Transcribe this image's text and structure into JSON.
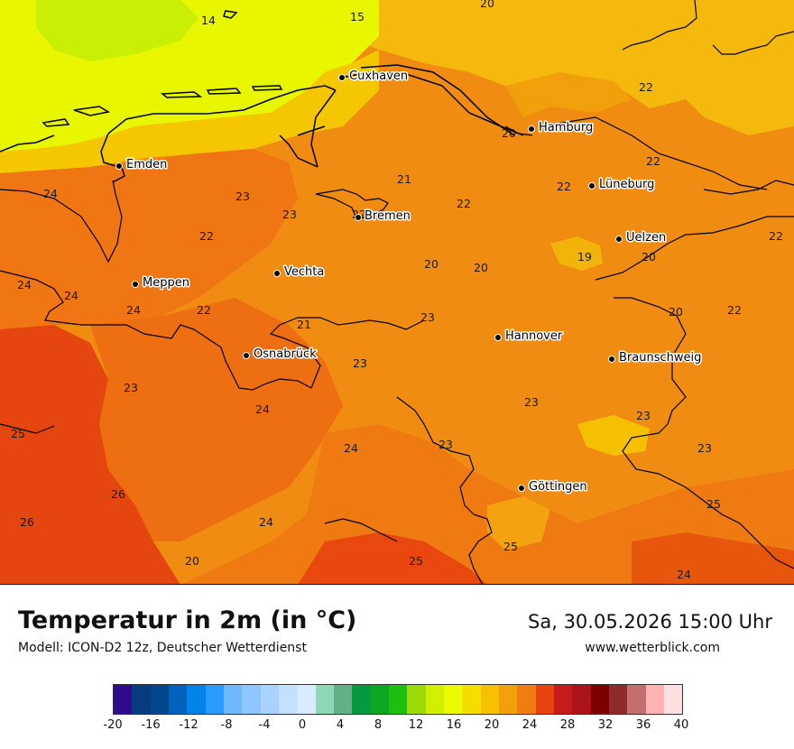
{
  "map": {
    "cities": [
      {
        "name": "Cuxhaven"
      },
      {
        "name": "Hamburg"
      },
      {
        "name": "Emden"
      },
      {
        "name": "Lüneburg"
      },
      {
        "name": "Bremen"
      },
      {
        "name": "Uelzen"
      },
      {
        "name": "Vechta"
      },
      {
        "name": "Meppen"
      },
      {
        "name": "Hannover"
      },
      {
        "name": "Osnabrück"
      },
      {
        "name": "Braunschweig"
      },
      {
        "name": "Göttingen"
      }
    ],
    "values": [
      "14",
      "15",
      "20",
      "22",
      "20",
      "22",
      "22",
      "21",
      "24",
      "23",
      "23",
      "22",
      "22",
      "22",
      "19",
      "20",
      "20",
      "22",
      "24",
      "24",
      "24",
      "22",
      "21",
      "23",
      "20",
      "22",
      "23",
      "23",
      "23",
      "23",
      "24",
      "25",
      "24",
      "23",
      "23",
      "26",
      "26",
      "24",
      "25",
      "20",
      "20",
      "25",
      "25",
      "24"
    ]
  },
  "title": "Temperatur in 2m (in °C)",
  "model": "Modell: ICON-D2 12z, Deutscher Wetterdienst",
  "datetime": "Sa, 30.05.2026 15:00 Uhr",
  "website": "www.wetterblick.com",
  "legend": {
    "colors": [
      "#2e0c8c",
      "#073d7e",
      "#00478c",
      "#0062ba",
      "#0083e8",
      "#2a9bff",
      "#6fb7ff",
      "#8dc5ff",
      "#a9d2ff",
      "#c4e0ff",
      "#d9ebff",
      "#8ed8b8",
      "#62b084",
      "#059a40",
      "#0fa624",
      "#1ec00f",
      "#9ed909",
      "#d1ef00",
      "#ecfa00",
      "#f5dd00",
      "#f5c100",
      "#f29f0c",
      "#ef7d12",
      "#e8420e",
      "#c41c1b",
      "#ad1417",
      "#7d0000",
      "#8e2c2c",
      "#c46f6f",
      "#ffb3b3",
      "#ffe0e0"
    ],
    "ticks": [
      "-20",
      "-16",
      "-12",
      "-8",
      "-4",
      "0",
      "4",
      "8",
      "12",
      "16",
      "20",
      "24",
      "28",
      "32",
      "36",
      "40"
    ]
  }
}
